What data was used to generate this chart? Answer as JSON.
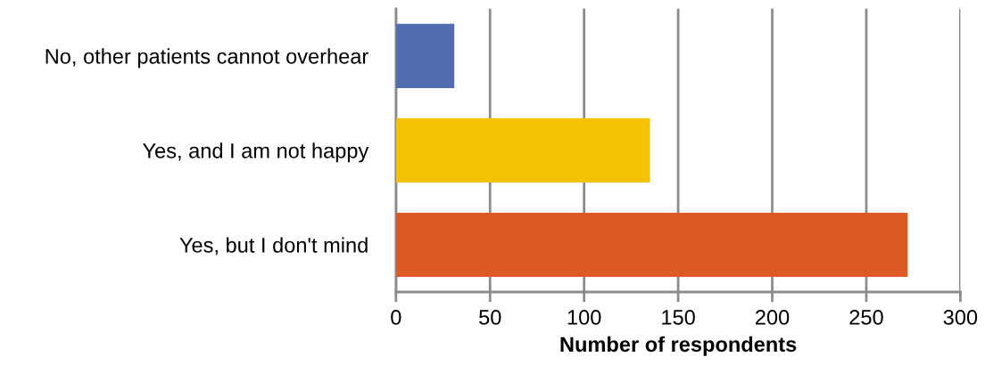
{
  "chart_data": {
    "type": "bar",
    "orientation": "horizontal",
    "xlabel": "Number of respondents",
    "categories": [
      "No, other patients cannot overhear",
      "Yes, and I am not happy",
      "Yes, but I don't mind"
    ],
    "values": [
      31,
      135,
      272
    ],
    "colors": [
      "#526daf",
      "#f3c200",
      "#dd5a24"
    ],
    "xlim": [
      0,
      300
    ],
    "xticks": [
      0,
      50,
      100,
      150,
      200,
      250,
      300
    ],
    "grid": "x",
    "legend": false
  }
}
